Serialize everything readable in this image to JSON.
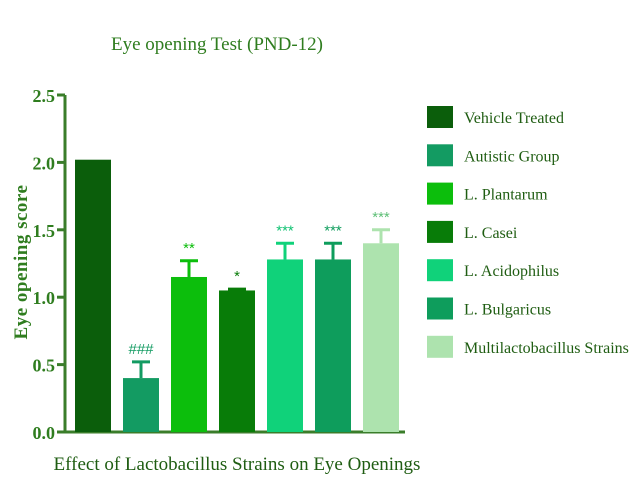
{
  "chart_data": {
    "type": "bar",
    "title": "Eye opening Test (PND-12)",
    "xlabel": "Effect of Lactobacillus Strains on Eye Openings",
    "ylabel": "Eye opening score",
    "ylim": [
      0,
      2.5
    ],
    "yticks": [
      "0.0",
      "0.5",
      "1.0",
      "1.5",
      "2.0",
      "2.5"
    ],
    "legend_position": "right",
    "categories": [
      "Vehicle Treated",
      "Autistic Group",
      "L. Plantarum",
      "L. Casei",
      "L. Acidophilus",
      "L. Bulgaricus",
      "Multilactobacillus Strains"
    ],
    "values": [
      2.02,
      0.4,
      1.15,
      1.05,
      1.28,
      1.28,
      1.4
    ],
    "errors": [
      0.0,
      0.12,
      0.12,
      0.01,
      0.12,
      0.12,
      0.1
    ],
    "significance": [
      "",
      "###",
      "**",
      "*",
      "***",
      "***",
      "***"
    ],
    "colors": [
      "#0b5e0b",
      "#139b62",
      "#0cbe0c",
      "#087c08",
      "#10d27a",
      "#0e9d5c",
      "#ade3ae"
    ],
    "sig_colors": [
      "#0b5e0b",
      "#139b62",
      "#0cbe0c",
      "#087c08",
      "#10c272",
      "#0e9d5c",
      "#5fbf77"
    ],
    "grid": false
  }
}
